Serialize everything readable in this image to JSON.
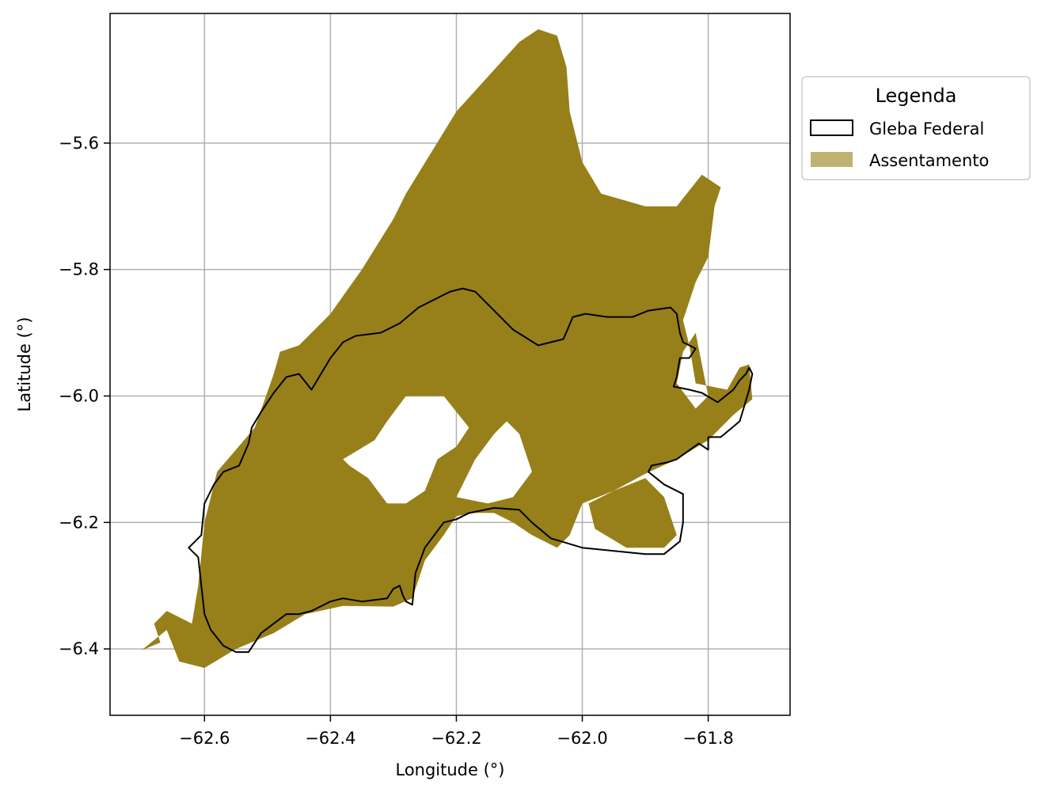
{
  "chart_data": {
    "type": "map",
    "xlabel": "Longitude (°)",
    "ylabel": "Latitude (°)",
    "xlim": [
      -62.75,
      -61.67
    ],
    "ylim": [
      -6.505,
      -5.395
    ],
    "xticks": [
      -62.6,
      -62.4,
      -62.2,
      -62.0,
      -61.8
    ],
    "yticks": [
      -5.6,
      -5.8,
      -6.0,
      -6.2,
      -6.4
    ],
    "grid": true,
    "legend": {
      "title": "Legenda",
      "placement": "outside-right-top",
      "entries": [
        {
          "label": "Gleba Federal",
          "style": "outline",
          "color": "#000000"
        },
        {
          "label": "Assentamento",
          "style": "fill",
          "color": "#bfb273"
        }
      ]
    },
    "colors": {
      "assentamento_fill": "#978019",
      "gleba_outline": "#000000",
      "grid": "#b0b0b0"
    },
    "layers": [
      {
        "name": "Assentamento",
        "polygons": [
          [
            [
              -62.7,
              -6.402
            ],
            [
              -62.66,
              -6.37
            ],
            [
              -62.64,
              -6.42
            ],
            [
              -62.6,
              -6.43
            ],
            [
              -62.55,
              -6.4
            ],
            [
              -62.49,
              -6.375
            ],
            [
              -62.44,
              -6.345
            ],
            [
              -62.38,
              -6.332
            ],
            [
              -62.3,
              -6.333
            ],
            [
              -62.27,
              -6.32
            ],
            [
              -62.25,
              -6.26
            ],
            [
              -62.22,
              -6.22
            ],
            [
              -62.2,
              -6.19
            ],
            [
              -62.17,
              -6.185
            ],
            [
              -62.14,
              -6.185
            ],
            [
              -62.11,
              -6.2
            ],
            [
              -62.08,
              -6.22
            ],
            [
              -62.04,
              -6.24
            ],
            [
              -62.02,
              -6.22
            ],
            [
              -62.0,
              -6.17
            ],
            [
              -61.95,
              -6.15
            ],
            [
              -61.9,
              -6.123
            ],
            [
              -61.85,
              -6.1
            ],
            [
              -61.8,
              -6.07
            ],
            [
              -61.76,
              -6.03
            ],
            [
              -61.73,
              -6.005
            ],
            [
              -61.735,
              -5.95
            ],
            [
              -61.75,
              -5.955
            ],
            [
              -61.77,
              -5.99
            ],
            [
              -61.82,
              -5.98
            ],
            [
              -61.83,
              -5.92
            ],
            [
              -61.84,
              -5.88
            ],
            [
              -61.82,
              -5.82
            ],
            [
              -61.8,
              -5.78
            ],
            [
              -61.79,
              -5.7
            ],
            [
              -61.78,
              -5.67
            ],
            [
              -61.81,
              -5.65
            ],
            [
              -61.85,
              -5.7
            ],
            [
              -61.9,
              -5.7
            ],
            [
              -61.97,
              -5.68
            ],
            [
              -62.0,
              -5.63
            ],
            [
              -62.02,
              -5.55
            ],
            [
              -62.025,
              -5.48
            ],
            [
              -62.04,
              -5.43
            ],
            [
              -62.07,
              -5.42
            ],
            [
              -62.1,
              -5.44
            ],
            [
              -62.2,
              -5.55
            ],
            [
              -62.28,
              -5.68
            ],
            [
              -62.3,
              -5.72
            ],
            [
              -62.35,
              -5.8
            ],
            [
              -62.4,
              -5.87
            ],
            [
              -62.45,
              -5.92
            ],
            [
              -62.48,
              -5.93
            ],
            [
              -62.49,
              -5.965
            ],
            [
              -62.52,
              -6.05
            ],
            [
              -62.58,
              -6.12
            ],
            [
              -62.6,
              -6.2
            ],
            [
              -62.61,
              -6.3
            ],
            [
              -62.62,
              -6.36
            ],
            [
              -62.66,
              -6.34
            ],
            [
              -62.68,
              -6.36
            ],
            [
              -62.67,
              -6.39
            ]
          ]
        ],
        "holes": [
          [
            [
              -62.38,
              -6.1
            ],
            [
              -62.33,
              -6.07
            ],
            [
              -62.31,
              -6.04
            ],
            [
              -62.28,
              -6.0
            ],
            [
              -62.22,
              -6.0
            ],
            [
              -62.18,
              -6.05
            ],
            [
              -62.2,
              -6.08
            ],
            [
              -62.23,
              -6.1
            ],
            [
              -62.25,
              -6.15
            ],
            [
              -62.28,
              -6.17
            ],
            [
              -62.31,
              -6.17
            ],
            [
              -62.34,
              -6.13
            ],
            [
              -62.37,
              -6.11
            ]
          ],
          [
            [
              -62.2,
              -6.16
            ],
            [
              -62.17,
              -6.1
            ],
            [
              -62.14,
              -6.06
            ],
            [
              -62.12,
              -6.04
            ],
            [
              -62.1,
              -6.06
            ],
            [
              -62.08,
              -6.12
            ],
            [
              -62.11,
              -6.16
            ],
            [
              -62.15,
              -6.17
            ]
          ],
          [
            [
              -61.99,
              -6.17
            ],
            [
              -61.95,
              -6.15
            ],
            [
              -61.9,
              -6.13
            ],
            [
              -61.87,
              -6.16
            ],
            [
              -61.85,
              -6.22
            ],
            [
              -61.87,
              -6.24
            ],
            [
              -61.93,
              -6.24
            ],
            [
              -61.98,
              -6.21
            ]
          ],
          [
            [
              -61.84,
              -5.93
            ],
            [
              -61.82,
              -5.9
            ],
            [
              -61.81,
              -5.95
            ],
            [
              -61.8,
              -6.0
            ],
            [
              -61.82,
              -6.02
            ],
            [
              -61.85,
              -5.98
            ]
          ]
        ]
      },
      {
        "name": "Gleba Federal",
        "polygons": [
          [
            [
              -62.47,
              -5.97
            ],
            [
              -62.45,
              -5.965
            ],
            [
              -62.43,
              -5.99
            ],
            [
              -62.4,
              -5.94
            ],
            [
              -62.38,
              -5.915
            ],
            [
              -62.36,
              -5.905
            ],
            [
              -62.32,
              -5.9
            ],
            [
              -62.29,
              -5.885
            ],
            [
              -62.26,
              -5.86
            ],
            [
              -62.21,
              -5.835
            ],
            [
              -62.19,
              -5.83
            ],
            [
              -62.17,
              -5.835
            ],
            [
              -62.14,
              -5.865
            ],
            [
              -62.11,
              -5.895
            ],
            [
              -62.07,
              -5.92
            ],
            [
              -62.03,
              -5.91
            ],
            [
              -62.015,
              -5.875
            ],
            [
              -61.995,
              -5.87
            ],
            [
              -61.96,
              -5.875
            ],
            [
              -61.92,
              -5.875
            ],
            [
              -61.895,
              -5.865
            ],
            [
              -61.86,
              -5.86
            ],
            [
              -61.85,
              -5.87
            ],
            [
              -61.845,
              -5.9
            ],
            [
              -61.84,
              -5.915
            ],
            [
              -61.82,
              -5.925
            ],
            [
              -61.83,
              -5.94
            ],
            [
              -61.845,
              -5.94
            ],
            [
              -61.85,
              -5.97
            ],
            [
              -61.855,
              -5.985
            ],
            [
              -61.83,
              -5.99
            ],
            [
              -61.81,
              -5.995
            ],
            [
              -61.785,
              -6.01
            ],
            [
              -61.76,
              -5.99
            ],
            [
              -61.75,
              -5.975
            ],
            [
              -61.74,
              -5.965
            ],
            [
              -61.735,
              -5.955
            ],
            [
              -61.73,
              -5.965
            ],
            [
              -61.735,
              -5.99
            ],
            [
              -61.75,
              -6.04
            ],
            [
              -61.78,
              -6.065
            ],
            [
              -61.8,
              -6.065
            ],
            [
              -61.8,
              -6.085
            ],
            [
              -61.815,
              -6.075
            ],
            [
              -61.85,
              -6.1
            ],
            [
              -61.865,
              -6.105
            ],
            [
              -61.89,
              -6.11
            ],
            [
              -61.895,
              -6.12
            ],
            [
              -61.87,
              -6.14
            ],
            [
              -61.84,
              -6.155
            ],
            [
              -61.84,
              -6.2
            ],
            [
              -61.845,
              -6.23
            ],
            [
              -61.87,
              -6.25
            ],
            [
              -61.9,
              -6.25
            ],
            [
              -61.95,
              -6.245
            ],
            [
              -62.0,
              -6.24
            ],
            [
              -62.05,
              -6.225
            ],
            [
              -62.08,
              -6.2
            ],
            [
              -62.1,
              -6.18
            ],
            [
              -62.14,
              -6.177
            ],
            [
              -62.18,
              -6.185
            ],
            [
              -62.2,
              -6.195
            ],
            [
              -62.22,
              -6.2
            ],
            [
              -62.25,
              -6.24
            ],
            [
              -62.265,
              -6.28
            ],
            [
              -62.27,
              -6.33
            ],
            [
              -62.28,
              -6.325
            ],
            [
              -62.285,
              -6.315
            ],
            [
              -62.29,
              -6.3
            ],
            [
              -62.3,
              -6.305
            ],
            [
              -62.31,
              -6.32
            ],
            [
              -62.35,
              -6.325
            ],
            [
              -62.38,
              -6.32
            ],
            [
              -62.4,
              -6.325
            ],
            [
              -62.43,
              -6.34
            ],
            [
              -62.45,
              -6.345
            ],
            [
              -62.47,
              -6.345
            ],
            [
              -62.49,
              -6.36
            ],
            [
              -62.51,
              -6.375
            ],
            [
              -62.52,
              -6.39
            ],
            [
              -62.53,
              -6.405
            ],
            [
              -62.55,
              -6.405
            ],
            [
              -62.57,
              -6.395
            ],
            [
              -62.59,
              -6.37
            ],
            [
              -62.6,
              -6.345
            ],
            [
              -62.605,
              -6.3
            ],
            [
              -62.61,
              -6.255
            ],
            [
              -62.625,
              -6.24
            ],
            [
              -62.605,
              -6.22
            ],
            [
              -62.6,
              -6.17
            ],
            [
              -62.585,
              -6.14
            ],
            [
              -62.57,
              -6.12
            ],
            [
              -62.545,
              -6.11
            ],
            [
              -62.53,
              -6.075
            ],
            [
              -62.525,
              -6.05
            ],
            [
              -62.51,
              -6.025
            ],
            [
              -62.49,
              -5.995
            ]
          ]
        ]
      }
    ]
  }
}
